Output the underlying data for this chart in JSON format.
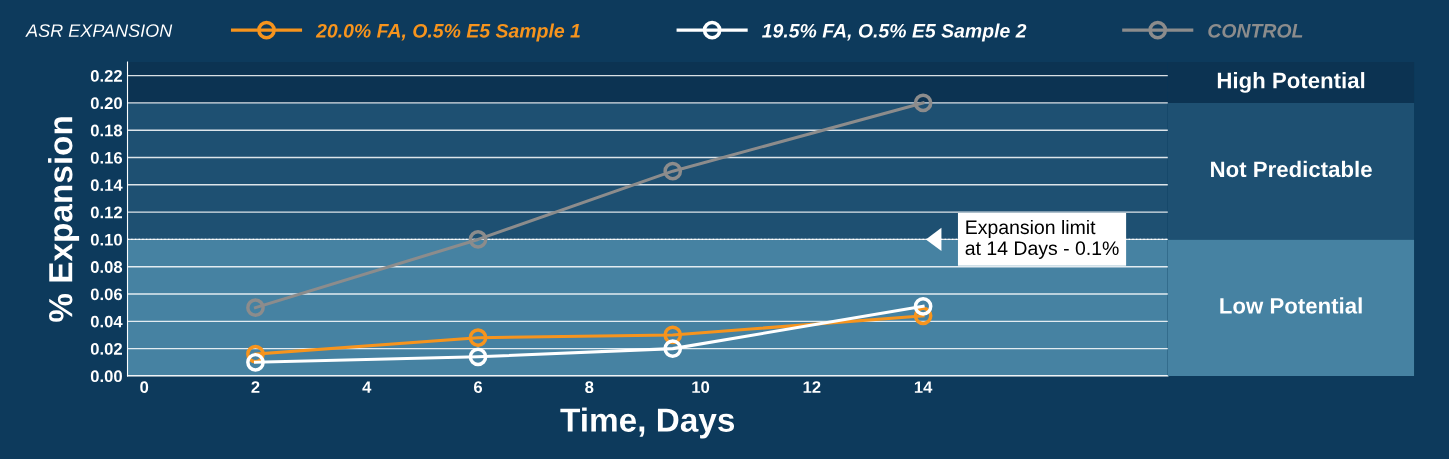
{
  "chart_data": {
    "type": "line",
    "title": "ASR EXPANSION",
    "xlabel": "Time, Days",
    "ylabel": "% Expansion",
    "series": [
      {
        "name": "20.0% FA, O.5% E5 Sample 1",
        "color": "#f7941d",
        "x": [
          2,
          6,
          9.5,
          14
        ],
        "values": [
          0.016,
          0.028,
          0.03,
          0.044
        ]
      },
      {
        "name": "19.5% FA, O.5% E5 Sample 2",
        "color": "#ffffff",
        "x": [
          2,
          6,
          9.5,
          14
        ],
        "values": [
          0.01,
          0.014,
          0.02,
          0.051
        ]
      },
      {
        "name": "CONTROL",
        "color": "#8c8c8c",
        "x": [
          2,
          6,
          9.5,
          14
        ],
        "values": [
          0.05,
          0.1,
          0.15,
          0.2
        ]
      }
    ],
    "xlim": [
      -0.3,
      18.4
    ],
    "xticks": [
      0,
      2,
      4,
      6,
      8,
      10,
      12,
      14
    ],
    "ylim": [
      0,
      0.23
    ],
    "yticks": [
      {
        "value": 0,
        "label": "0.00"
      },
      {
        "value": 0.02,
        "label": "0.02"
      },
      {
        "value": 0.04,
        "label": "0.04"
      },
      {
        "value": 0.06,
        "label": "0.06"
      },
      {
        "value": 0.08,
        "label": "0.08"
      },
      {
        "value": 0.1,
        "label": "0.10"
      },
      {
        "value": 0.12,
        "label": "0.12"
      },
      {
        "value": 0.14,
        "label": "0.14"
      },
      {
        "value": 0.16,
        "label": "0.16"
      },
      {
        "value": 0.18,
        "label": "0.18"
      },
      {
        "value": 0.2,
        "label": "0.20"
      },
      {
        "value": 0.22,
        "label": "0.22"
      }
    ],
    "ref_lines": [
      {
        "axis": "y",
        "value": 0.1,
        "label": "Expansion limit\nat 14 Days - 0.1%",
        "color": "#ffffff",
        "line_style": "dotted"
      }
    ],
    "bands": [
      {
        "axis": "y",
        "from": 0,
        "to": 0.1,
        "label": "Low Potential",
        "color": "#4682a2"
      },
      {
        "axis": "y",
        "from": 0.1,
        "to": 0.2,
        "label": "Not Predictable",
        "color": "#1e5072"
      },
      {
        "axis": "y",
        "from": 0.2,
        "to": 0.23,
        "label": "High Potential",
        "color": "#0c3352"
      }
    ],
    "grid": "y",
    "legend": "top",
    "marker": "circle",
    "line_style": "solid"
  }
}
